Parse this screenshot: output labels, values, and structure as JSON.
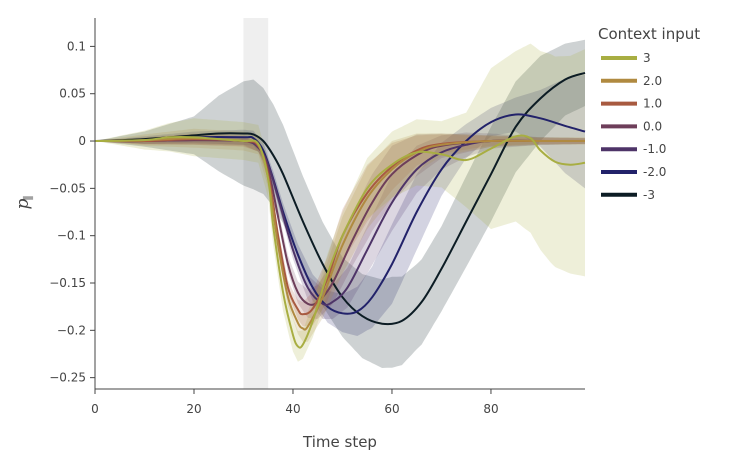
{
  "chart_data": {
    "type": "line",
    "title": "",
    "xlabel": "Time step",
    "ylabel": "p",
    "ylabel_subscript": "∥",
    "xlim": [
      0,
      99
    ],
    "ylim": [
      -0.262,
      0.13
    ],
    "xticks": [
      0,
      20,
      40,
      60,
      80
    ],
    "xtick_labels": [
      "0",
      "20",
      "40",
      "60",
      "80"
    ],
    "yticks": [
      0.1,
      0.05,
      0,
      -0.05,
      -0.1,
      -0.15,
      -0.2,
      -0.25
    ],
    "ytick_labels": [
      "0.1",
      "0.05",
      "0",
      "−0.05",
      "−0.1",
      "−0.15",
      "−0.2",
      "−0.25"
    ],
    "grid": false,
    "highlight_band": {
      "x0": 30,
      "x1": 35
    },
    "legend": {
      "title": "Context input",
      "position": "top-right"
    },
    "series": [
      {
        "name": "3",
        "color": "#a8ae42",
        "points": [
          [
            0,
            0
          ],
          [
            10,
            0.001
          ],
          [
            15,
            0.004
          ],
          [
            20,
            0.004
          ],
          [
            25,
            0.002
          ],
          [
            30,
            0.0
          ],
          [
            33,
            -0.003
          ],
          [
            35,
            -0.04
          ],
          [
            36,
            -0.09
          ],
          [
            38,
            -0.16
          ],
          [
            40,
            -0.205
          ],
          [
            41,
            -0.217
          ],
          [
            42,
            -0.215
          ],
          [
            44,
            -0.19
          ],
          [
            47,
            -0.14
          ],
          [
            50,
            -0.1
          ],
          [
            55,
            -0.05
          ],
          [
            60,
            -0.025
          ],
          [
            65,
            -0.012
          ],
          [
            70,
            -0.014
          ],
          [
            75,
            -0.02
          ],
          [
            80,
            -0.008
          ],
          [
            85,
            0.005
          ],
          [
            88,
            0.003
          ],
          [
            90,
            -0.01
          ],
          [
            93,
            -0.022
          ],
          [
            96,
            -0.025
          ],
          [
            99,
            -0.023
          ]
        ],
        "band": [
          [
            0,
            0
          ],
          [
            10,
            0.01
          ],
          [
            20,
            0.02
          ],
          [
            30,
            0.02
          ],
          [
            33,
            0.02
          ],
          [
            38,
            0.02
          ],
          [
            42,
            0.015
          ],
          [
            46,
            0.02
          ],
          [
            50,
            0.025
          ],
          [
            55,
            0.032
          ],
          [
            60,
            0.035
          ],
          [
            65,
            0.035
          ],
          [
            70,
            0.035
          ],
          [
            75,
            0.05
          ],
          [
            80,
            0.085
          ],
          [
            85,
            0.09
          ],
          [
            88,
            0.1
          ],
          [
            92,
            0.11
          ],
          [
            96,
            0.115
          ],
          [
            99,
            0.12
          ]
        ]
      },
      {
        "name": "2.0",
        "color": "#b08a40",
        "points": [
          [
            0,
            0
          ],
          [
            10,
            0.001
          ],
          [
            20,
            0.003
          ],
          [
            30,
            0.0
          ],
          [
            33,
            -0.004
          ],
          [
            35,
            -0.04
          ],
          [
            37,
            -0.11
          ],
          [
            39,
            -0.165
          ],
          [
            41,
            -0.192
          ],
          [
            42,
            -0.198
          ],
          [
            43,
            -0.196
          ],
          [
            46,
            -0.165
          ],
          [
            50,
            -0.11
          ],
          [
            55,
            -0.06
          ],
          [
            60,
            -0.03
          ],
          [
            65,
            -0.012
          ],
          [
            70,
            -0.004
          ],
          [
            80,
            0.0
          ],
          [
            90,
            0.0
          ],
          [
            99,
            0.0
          ]
        ],
        "band": [
          [
            0,
            0
          ],
          [
            10,
            0.006
          ],
          [
            20,
            0.01
          ],
          [
            30,
            0.01
          ],
          [
            35,
            0.01
          ],
          [
            40,
            0.01
          ],
          [
            45,
            0.02
          ],
          [
            50,
            0.03
          ],
          [
            55,
            0.033
          ],
          [
            60,
            0.03
          ],
          [
            65,
            0.02
          ],
          [
            70,
            0.012
          ],
          [
            80,
            0.006
          ],
          [
            90,
            0.004
          ],
          [
            99,
            0.004
          ]
        ]
      },
      {
        "name": "1.0",
        "color": "#a85a40",
        "points": [
          [
            0,
            0
          ],
          [
            10,
            0.0
          ],
          [
            20,
            0.002
          ],
          [
            30,
            0.0
          ],
          [
            33,
            -0.005
          ],
          [
            35,
            -0.035
          ],
          [
            37,
            -0.1
          ],
          [
            39,
            -0.155
          ],
          [
            41,
            -0.178
          ],
          [
            42,
            -0.183
          ],
          [
            44,
            -0.177
          ],
          [
            47,
            -0.145
          ],
          [
            50,
            -0.1
          ],
          [
            55,
            -0.055
          ],
          [
            60,
            -0.027
          ],
          [
            65,
            -0.01
          ],
          [
            70,
            -0.003
          ],
          [
            80,
            0.0
          ],
          [
            90,
            0.0
          ],
          [
            99,
            0.0
          ]
        ],
        "band": [
          [
            0,
            0
          ],
          [
            10,
            0.004
          ],
          [
            20,
            0.006
          ],
          [
            30,
            0.006
          ],
          [
            35,
            0.006
          ],
          [
            40,
            0.008
          ],
          [
            45,
            0.02
          ],
          [
            50,
            0.028
          ],
          [
            55,
            0.03
          ],
          [
            60,
            0.025
          ],
          [
            65,
            0.016
          ],
          [
            70,
            0.01
          ],
          [
            80,
            0.005
          ],
          [
            90,
            0.003
          ],
          [
            99,
            0.003
          ]
        ]
      },
      {
        "name": "0.0",
        "color": "#6e3e5a",
        "points": [
          [
            0,
            0
          ],
          [
            10,
            0.0
          ],
          [
            20,
            0.001
          ],
          [
            30,
            0.0
          ],
          [
            33,
            -0.006
          ],
          [
            35,
            -0.03
          ],
          [
            37,
            -0.08
          ],
          [
            39,
            -0.13
          ],
          [
            41,
            -0.16
          ],
          [
            43,
            -0.172
          ],
          [
            45,
            -0.17
          ],
          [
            48,
            -0.15
          ],
          [
            52,
            -0.105
          ],
          [
            56,
            -0.065
          ],
          [
            60,
            -0.035
          ],
          [
            65,
            -0.015
          ],
          [
            70,
            -0.005
          ],
          [
            80,
            0.0
          ],
          [
            90,
            0.0
          ],
          [
            99,
            0.0
          ]
        ],
        "band": [
          [
            0,
            0
          ],
          [
            10,
            0.003
          ],
          [
            20,
            0.005
          ],
          [
            30,
            0.005
          ],
          [
            35,
            0.005
          ],
          [
            40,
            0.01
          ],
          [
            45,
            0.018
          ],
          [
            50,
            0.025
          ],
          [
            55,
            0.03
          ],
          [
            60,
            0.03
          ],
          [
            65,
            0.022
          ],
          [
            70,
            0.013
          ],
          [
            80,
            0.006
          ],
          [
            90,
            0.004
          ],
          [
            99,
            0.003
          ]
        ]
      },
      {
        "name": "-1.0",
        "color": "#4e3468",
        "points": [
          [
            0,
            0
          ],
          [
            10,
            0.0
          ],
          [
            20,
            0.001
          ],
          [
            30,
            0.0
          ],
          [
            33,
            -0.007
          ],
          [
            35,
            -0.025
          ],
          [
            37,
            -0.06
          ],
          [
            40,
            -0.115
          ],
          [
            43,
            -0.155
          ],
          [
            46,
            -0.172
          ],
          [
            48,
            -0.17
          ],
          [
            51,
            -0.155
          ],
          [
            55,
            -0.115
          ],
          [
            60,
            -0.065
          ],
          [
            65,
            -0.03
          ],
          [
            70,
            -0.012
          ],
          [
            75,
            -0.004
          ],
          [
            80,
            0.0
          ],
          [
            90,
            0.0
          ],
          [
            99,
            0.0
          ]
        ],
        "band": [
          [
            0,
            0
          ],
          [
            10,
            0.003
          ],
          [
            20,
            0.004
          ],
          [
            30,
            0.004
          ],
          [
            35,
            0.005
          ],
          [
            40,
            0.01
          ],
          [
            45,
            0.015
          ],
          [
            50,
            0.02
          ],
          [
            55,
            0.025
          ],
          [
            60,
            0.03
          ],
          [
            65,
            0.025
          ],
          [
            70,
            0.018
          ],
          [
            80,
            0.008
          ],
          [
            90,
            0.004
          ],
          [
            99,
            0.003
          ]
        ]
      },
      {
        "name": "-2.0",
        "color": "#22226a",
        "points": [
          [
            0,
            0
          ],
          [
            10,
            0.001
          ],
          [
            20,
            0.004
          ],
          [
            30,
            0.004
          ],
          [
            32,
            0.003
          ],
          [
            34,
            -0.01
          ],
          [
            36,
            -0.04
          ],
          [
            38,
            -0.075
          ],
          [
            41,
            -0.12
          ],
          [
            44,
            -0.155
          ],
          [
            47,
            -0.175
          ],
          [
            50,
            -0.182
          ],
          [
            53,
            -0.18
          ],
          [
            56,
            -0.165
          ],
          [
            60,
            -0.13
          ],
          [
            65,
            -0.075
          ],
          [
            70,
            -0.03
          ],
          [
            75,
            0.0
          ],
          [
            80,
            0.02
          ],
          [
            85,
            0.028
          ],
          [
            90,
            0.024
          ],
          [
            95,
            0.016
          ],
          [
            99,
            0.01
          ]
        ],
        "band": [
          [
            0,
            0
          ],
          [
            10,
            0.004
          ],
          [
            20,
            0.006
          ],
          [
            30,
            0.008
          ],
          [
            35,
            0.008
          ],
          [
            40,
            0.01
          ],
          [
            45,
            0.015
          ],
          [
            50,
            0.02
          ],
          [
            55,
            0.03
          ],
          [
            60,
            0.042
          ],
          [
            65,
            0.04
          ],
          [
            70,
            0.028
          ],
          [
            75,
            0.018
          ],
          [
            80,
            0.015
          ],
          [
            85,
            0.018
          ],
          [
            90,
            0.03
          ],
          [
            95,
            0.05
          ],
          [
            99,
            0.06
          ]
        ]
      },
      {
        "name": "-3",
        "color": "#0c1c24",
        "points": [
          [
            0,
            0
          ],
          [
            10,
            0.002
          ],
          [
            20,
            0.006
          ],
          [
            25,
            0.008
          ],
          [
            30,
            0.008
          ],
          [
            32,
            0.007
          ],
          [
            34,
            0.0
          ],
          [
            36,
            -0.015
          ],
          [
            38,
            -0.035
          ],
          [
            42,
            -0.085
          ],
          [
            46,
            -0.13
          ],
          [
            50,
            -0.165
          ],
          [
            54,
            -0.185
          ],
          [
            58,
            -0.193
          ],
          [
            62,
            -0.19
          ],
          [
            66,
            -0.17
          ],
          [
            70,
            -0.135
          ],
          [
            75,
            -0.085
          ],
          [
            80,
            -0.035
          ],
          [
            85,
            0.015
          ],
          [
            90,
            0.045
          ],
          [
            95,
            0.065
          ],
          [
            99,
            0.072
          ]
        ],
        "band": [
          [
            0,
            0
          ],
          [
            10,
            0.008
          ],
          [
            20,
            0.02
          ],
          [
            25,
            0.04
          ],
          [
            30,
            0.055
          ],
          [
            32,
            0.058
          ],
          [
            35,
            0.055
          ],
          [
            40,
            0.05
          ],
          [
            45,
            0.045
          ],
          [
            50,
            0.042
          ],
          [
            55,
            0.045
          ],
          [
            60,
            0.048
          ],
          [
            65,
            0.045
          ],
          [
            70,
            0.045
          ],
          [
            75,
            0.048
          ],
          [
            80,
            0.05
          ],
          [
            85,
            0.048
          ],
          [
            90,
            0.045
          ],
          [
            95,
            0.038
          ],
          [
            99,
            0.035
          ]
        ]
      }
    ]
  }
}
